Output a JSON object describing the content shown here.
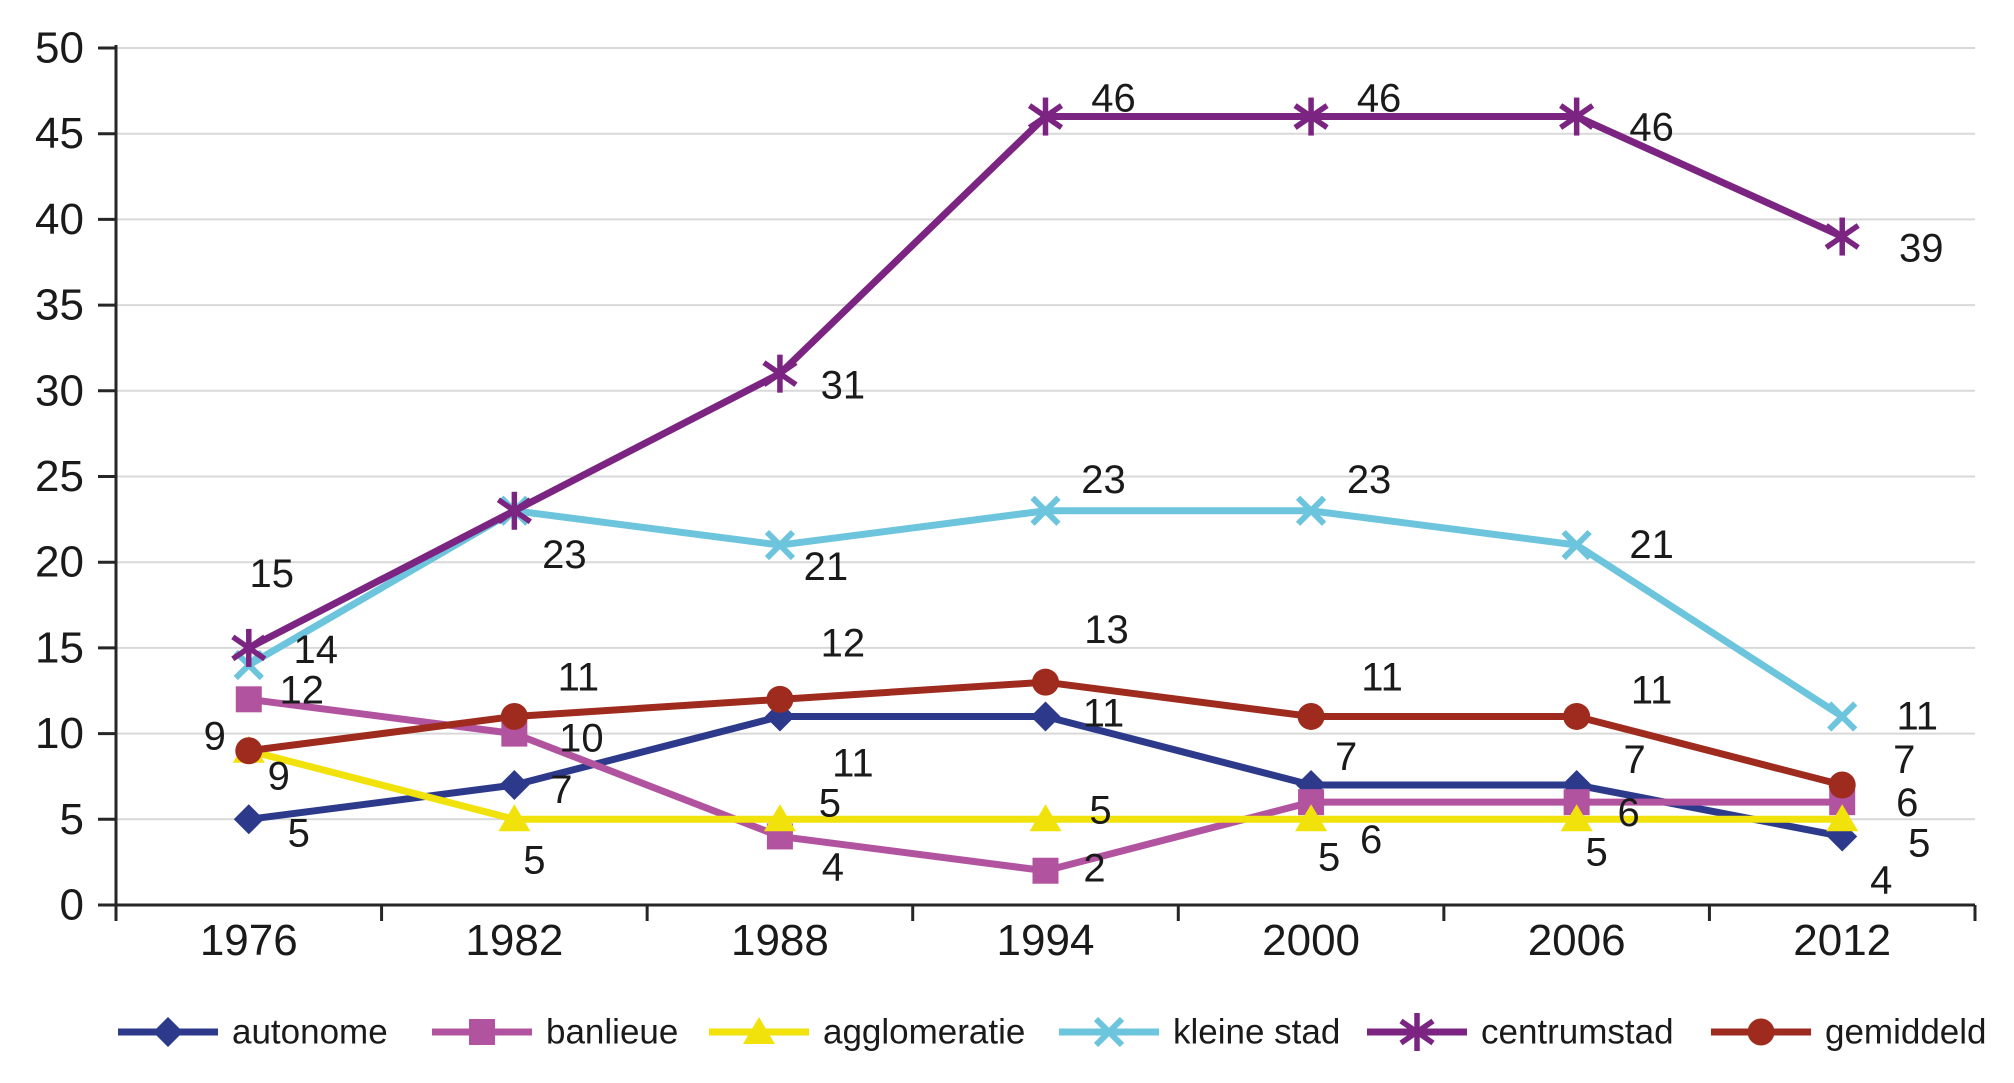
{
  "chart_data": {
    "type": "line",
    "categories": [
      "1976",
      "1982",
      "1988",
      "1994",
      "2000",
      "2006",
      "2012"
    ],
    "title": "",
    "xlabel": "",
    "ylabel": "",
    "ylim": [
      0,
      50
    ],
    "ytick_step": 5,
    "yticks": [
      "0",
      "5",
      "10",
      "15",
      "20",
      "25",
      "30",
      "35",
      "40",
      "45",
      "50"
    ],
    "grid": "horizontal",
    "data_labels": true,
    "legend_position": "bottom",
    "series": [
      {
        "name": "autonome",
        "color": "#2D3A8C",
        "marker": "diamond",
        "values": [
          5,
          7,
          11,
          11,
          7,
          7,
          4
        ]
      },
      {
        "name": "banlieue",
        "color": "#B2539F",
        "marker": "square",
        "values": [
          12,
          10,
          4,
          2,
          6,
          6,
          6
        ]
      },
      {
        "name": "agglomeratie",
        "color": "#F2E20B",
        "marker": "triangle",
        "values": [
          9,
          5,
          5,
          5,
          5,
          5,
          5
        ]
      },
      {
        "name": "kleine stad",
        "color": "#6CC5DD",
        "marker": "x",
        "values": [
          14,
          23,
          21,
          23,
          23,
          21,
          11
        ]
      },
      {
        "name": "centrumstad",
        "color": "#7B2482",
        "marker": "asterisk",
        "values": [
          15,
          23,
          31,
          46,
          46,
          46,
          39
        ]
      },
      {
        "name": "gemiddeld",
        "color": "#9E2B1E",
        "marker": "circle",
        "values": [
          9,
          11,
          12,
          13,
          11,
          11,
          7
        ]
      }
    ],
    "colors": {
      "grid": "#D9D9D9",
      "axis": "#262626",
      "label_text": "#1a1a1a"
    }
  }
}
